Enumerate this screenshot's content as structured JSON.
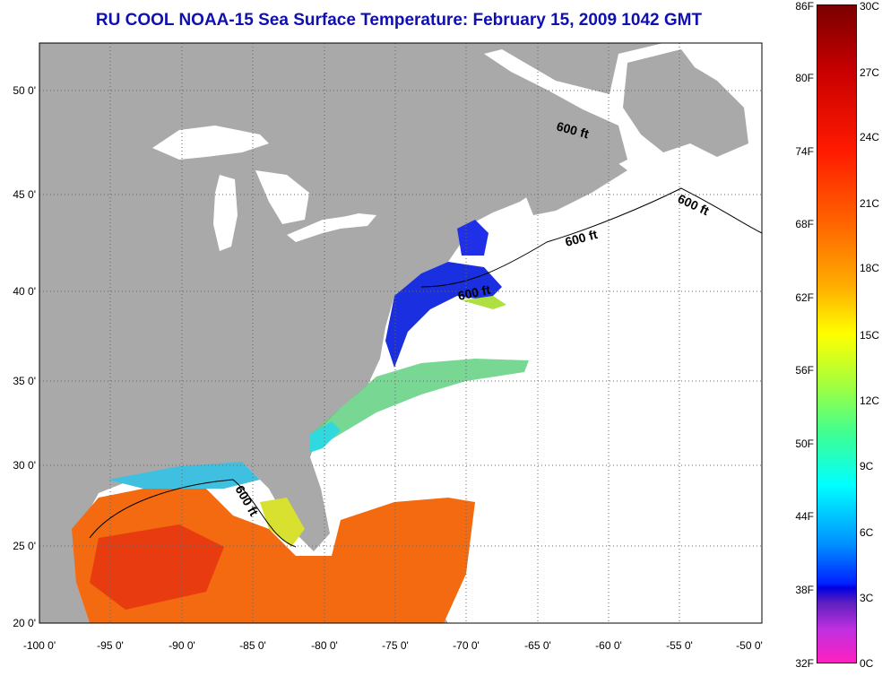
{
  "title": "RU COOL  NOAA-15  Sea Surface Temperature:  February 15, 2009 1042 GMT",
  "lat_labels": [
    "50 0'",
    "45 0'",
    "40 0'",
    "35 0'",
    "30 0'",
    "25 0'",
    "20 0'"
  ],
  "lon_labels": [
    "-100 0'",
    "-95 0'",
    "-90 0'",
    "-85 0'",
    "-80 0'",
    "-75 0'",
    "-70 0'",
    "-65 0'",
    "-60 0'",
    "-55 0'",
    "-50 0'"
  ],
  "contour_label": "600 ft",
  "colorbar": {
    "fahrenheit": [
      "86F",
      "80F",
      "74F",
      "68F",
      "62F",
      "56F",
      "50F",
      "44F",
      "38F",
      "32F"
    ],
    "celsius": [
      "30C",
      "27C",
      "24C",
      "21C",
      "18C",
      "15C",
      "12C",
      "9C",
      "6C",
      "3C",
      "0C"
    ],
    "range_c": [
      0,
      30
    ]
  },
  "colors": {
    "land": "#a9a9a9",
    "no_data": "#ffffff",
    "title": "#1010b0"
  }
}
